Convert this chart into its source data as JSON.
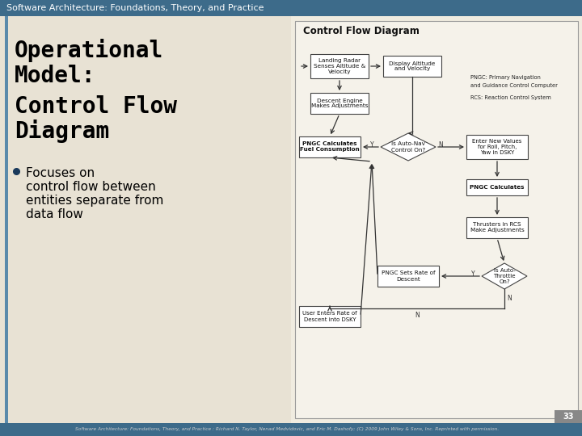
{
  "header_text": "Software Architecture: Foundations, Theory, and Practice",
  "header_bg": "#3d6b8a",
  "header_text_color": "#ffffff",
  "slide_bg": "#e8e2d4",
  "left_panel_bg": "#e8e2d4",
  "title_lines": [
    "Operational",
    "Model:",
    "Control Flow",
    "Diagram"
  ],
  "title_color": "#000000",
  "title_fontsize": 20,
  "bullet_lines": [
    "Focuses on",
    "control flow between",
    "entities separate from",
    "data flow"
  ],
  "bullet_color": "#000000",
  "bullet_dot_color": "#1a3a5c",
  "bullet_fontsize": 11,
  "left_border_color": "#5a8aab",
  "diagram_bg": "#f0ece0",
  "diagram_border": "#999999",
  "diagram_title": "Control Flow Diagram",
  "footer_text": "Software Architecture: Foundations, Theory, and Practice : Richard N. Taylor, Nenad Medvidovic, and Eric M. Dashofy; (C) 2009 John Wiley & Sons, Inc. Reprinted with permission.",
  "footer_bg": "#3d6b8a",
  "footer_text_color": "#cccccc",
  "page_number": "33",
  "page_num_bg": "#888888",
  "box_fill": "#ffffff",
  "box_border": "#444444",
  "diamond_fill": "#ffffff",
  "arrow_color": "#333333",
  "legend_pngc_line1": "PNGC: Primary Navigation",
  "legend_pngc_line2": "and Guidance Control Computer",
  "legend_rcs": "RCS: Reaction Control System"
}
